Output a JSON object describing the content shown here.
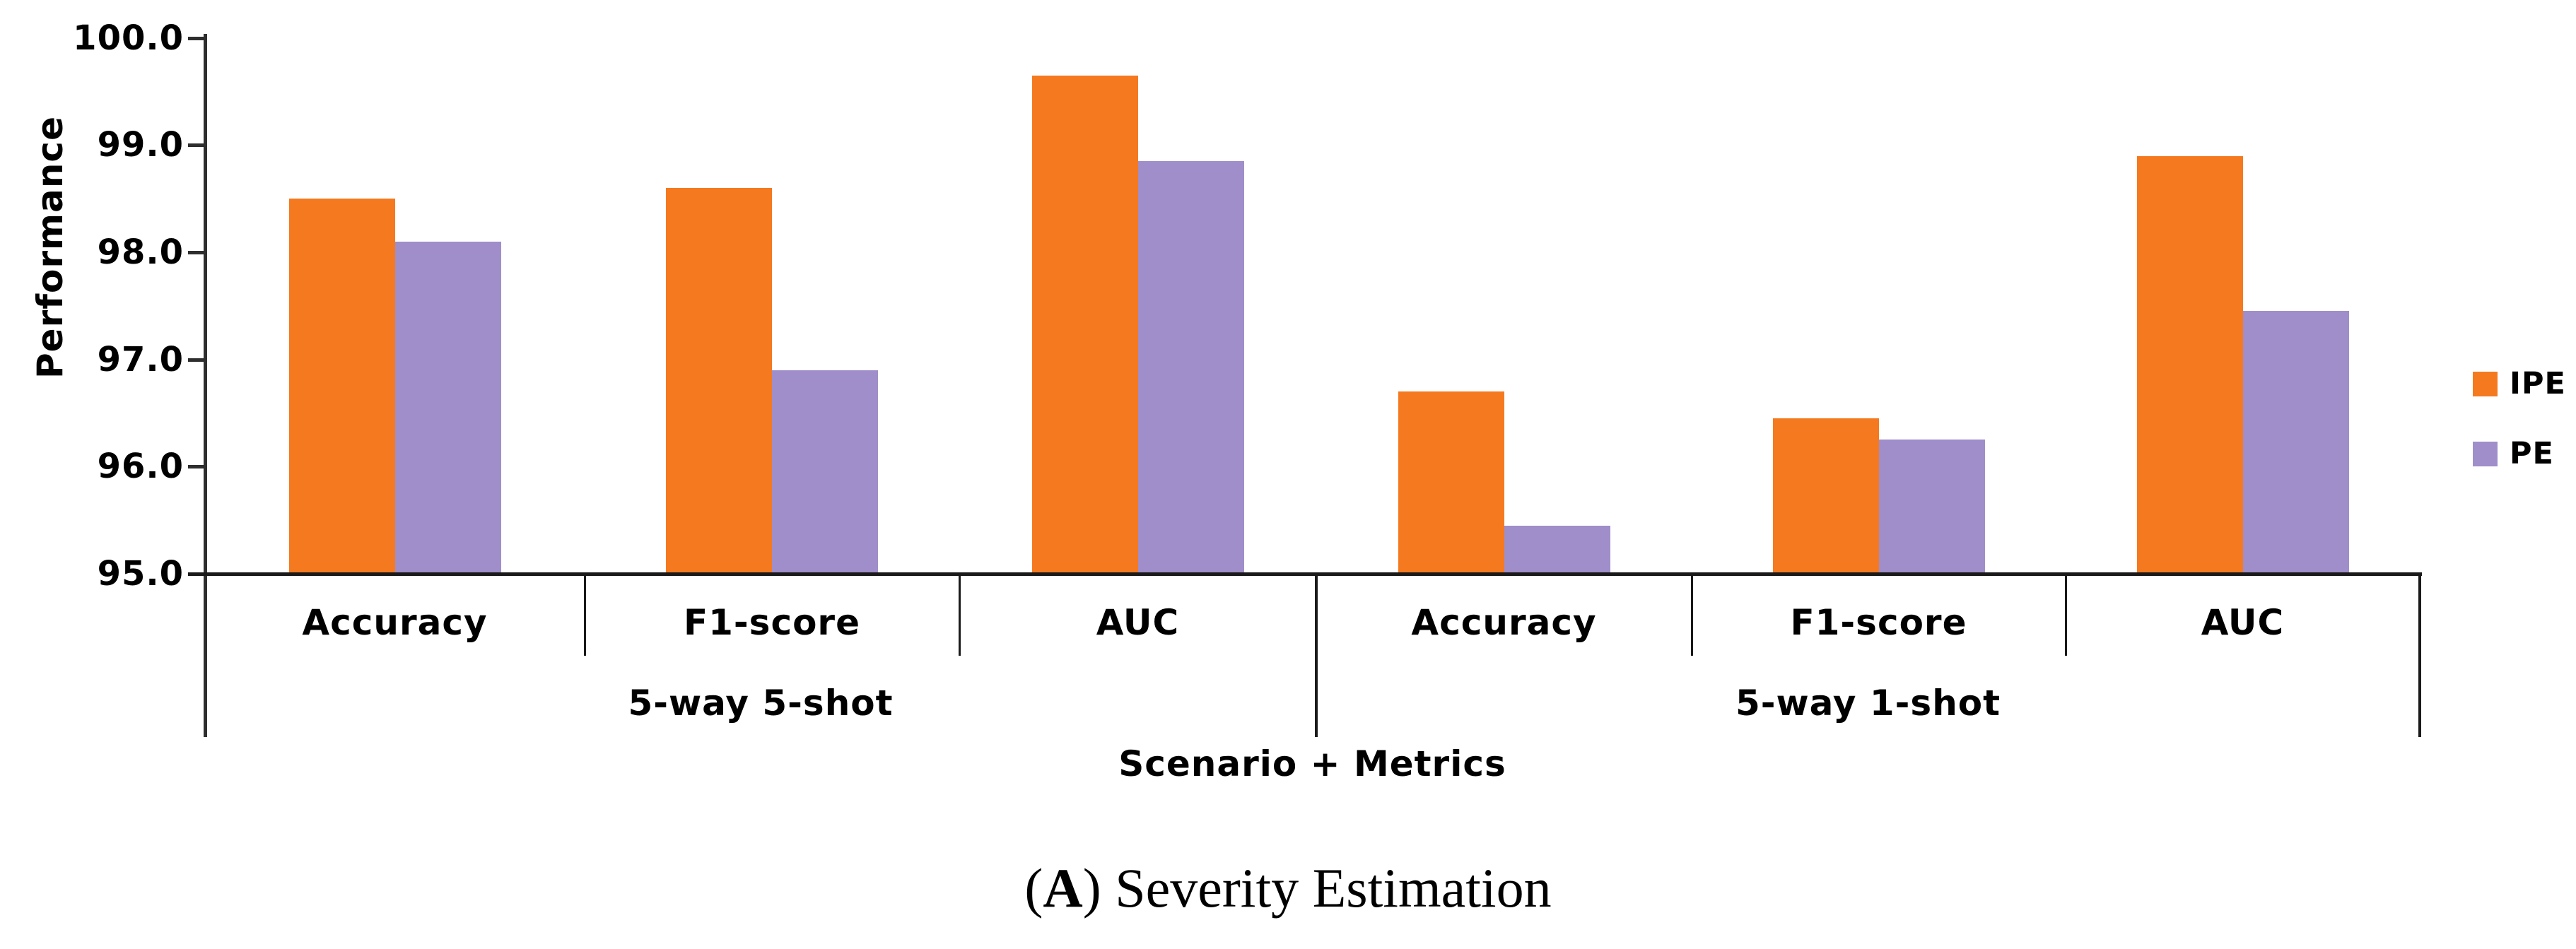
{
  "caption": {
    "open": "(",
    "letter": "A",
    "rest": ") Severity Estimation"
  },
  "chart_data": {
    "type": "bar",
    "title": "",
    "ylabel": "Performance",
    "xlabel": "Scenario + Metrics",
    "ylim": [
      95.0,
      100.0
    ],
    "ytick_step": 1.0,
    "ytick_labels": [
      "100.0",
      "99.0",
      "98.0",
      "97.0",
      "96.0",
      "95.0"
    ],
    "grid": false,
    "legend_position": "right",
    "groups": [
      {
        "label": "5-way 5-shot",
        "categories": [
          "Accuracy",
          "F1-score",
          "AUC"
        ]
      },
      {
        "label": "5-way 1-shot",
        "categories": [
          "Accuracy",
          "F1-score",
          "AUC"
        ]
      }
    ],
    "categories": [
      "Accuracy",
      "F1-score",
      "AUC",
      "Accuracy",
      "F1-score",
      "AUC"
    ],
    "series": [
      {
        "name": "IPE",
        "color": "#F5791F",
        "values": [
          98.5,
          98.6,
          99.65,
          96.7,
          96.45,
          98.9
        ]
      },
      {
        "name": "PE",
        "color": "#9F8EC9",
        "values": [
          98.1,
          96.9,
          98.85,
          95.45,
          96.25,
          97.45
        ]
      }
    ]
  }
}
